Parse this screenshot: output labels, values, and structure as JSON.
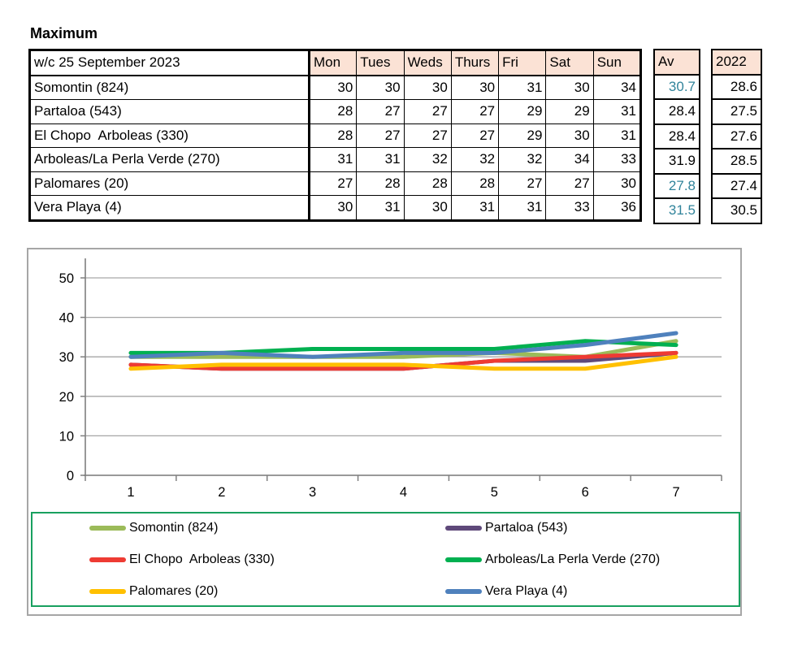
{
  "page": {
    "title": "Maximum"
  },
  "colors": {
    "header_fill": "#FBE2D5",
    "teal_value": "#31849B",
    "grid": "#A6A6A6",
    "axis": "#7F7F7F",
    "chart_border": "#A6A6A6",
    "legend_border": "#18A05F"
  },
  "table": {
    "corner_label": "w/c 25 September 2023",
    "day_headers": [
      "Mon",
      "Tues",
      "Weds",
      "Thurs",
      "Fri",
      "Sat",
      "Sun"
    ],
    "av_header": "Av",
    "year_header": "2022",
    "rows": [
      {
        "name": "Somontin (824)",
        "values": [
          30,
          30,
          30,
          30,
          31,
          30,
          34
        ],
        "av": "30.7",
        "av_teal": true,
        "y2022": "28.6"
      },
      {
        "name": "Partaloa (543)",
        "values": [
          28,
          27,
          27,
          27,
          29,
          29,
          31
        ],
        "av": "28.4",
        "av_teal": false,
        "y2022": "27.5"
      },
      {
        "name": "El Chopo  Arboleas (330)",
        "values": [
          28,
          27,
          27,
          27,
          29,
          30,
          31
        ],
        "av": "28.4",
        "av_teal": false,
        "y2022": "27.6"
      },
      {
        "name": "Arboleas/La Perla Verde (270)",
        "values": [
          31,
          31,
          32,
          32,
          32,
          34,
          33
        ],
        "av": "31.9",
        "av_teal": false,
        "y2022": "28.5"
      },
      {
        "name": "Palomares (20)",
        "values": [
          27,
          28,
          28,
          28,
          27,
          27,
          30
        ],
        "av": "27.8",
        "av_teal": true,
        "y2022": "27.4"
      },
      {
        "name": "Vera Playa (4)",
        "values": [
          30,
          31,
          30,
          31,
          31,
          33,
          36
        ],
        "av": "31.5",
        "av_teal": true,
        "y2022": "30.5"
      }
    ]
  },
  "chart_data": {
    "type": "line",
    "title": "",
    "xlabel": "",
    "ylabel": "",
    "x": [
      1,
      2,
      3,
      4,
      5,
      6,
      7
    ],
    "yticks": [
      0,
      10,
      20,
      30,
      40,
      50
    ],
    "ylim": [
      0,
      55
    ],
    "grid": true,
    "legend_position": "bottom",
    "legend_columns": 2,
    "series": [
      {
        "name": "Somontin (824)",
        "color": "#9BBB59",
        "values": [
          30,
          30,
          30,
          30,
          31,
          30,
          34
        ]
      },
      {
        "name": "Partaloa (543)",
        "color": "#5F497A",
        "values": [
          28,
          27,
          27,
          27,
          29,
          29,
          31
        ]
      },
      {
        "name": "El Chopo  Arboleas (330)",
        "color": "#EE3B33",
        "values": [
          28,
          27,
          27,
          27,
          29,
          30,
          31
        ]
      },
      {
        "name": "Arboleas/La Perla Verde (270)",
        "color": "#00B050",
        "values": [
          31,
          31,
          32,
          32,
          32,
          34,
          33
        ]
      },
      {
        "name": "Palomares (20)",
        "color": "#FFC000",
        "values": [
          27,
          28,
          28,
          28,
          27,
          27,
          30
        ]
      },
      {
        "name": "Vera Playa (4)",
        "color": "#4F81BD",
        "values": [
          30,
          31,
          30,
          31,
          31,
          33,
          36
        ]
      }
    ]
  }
}
